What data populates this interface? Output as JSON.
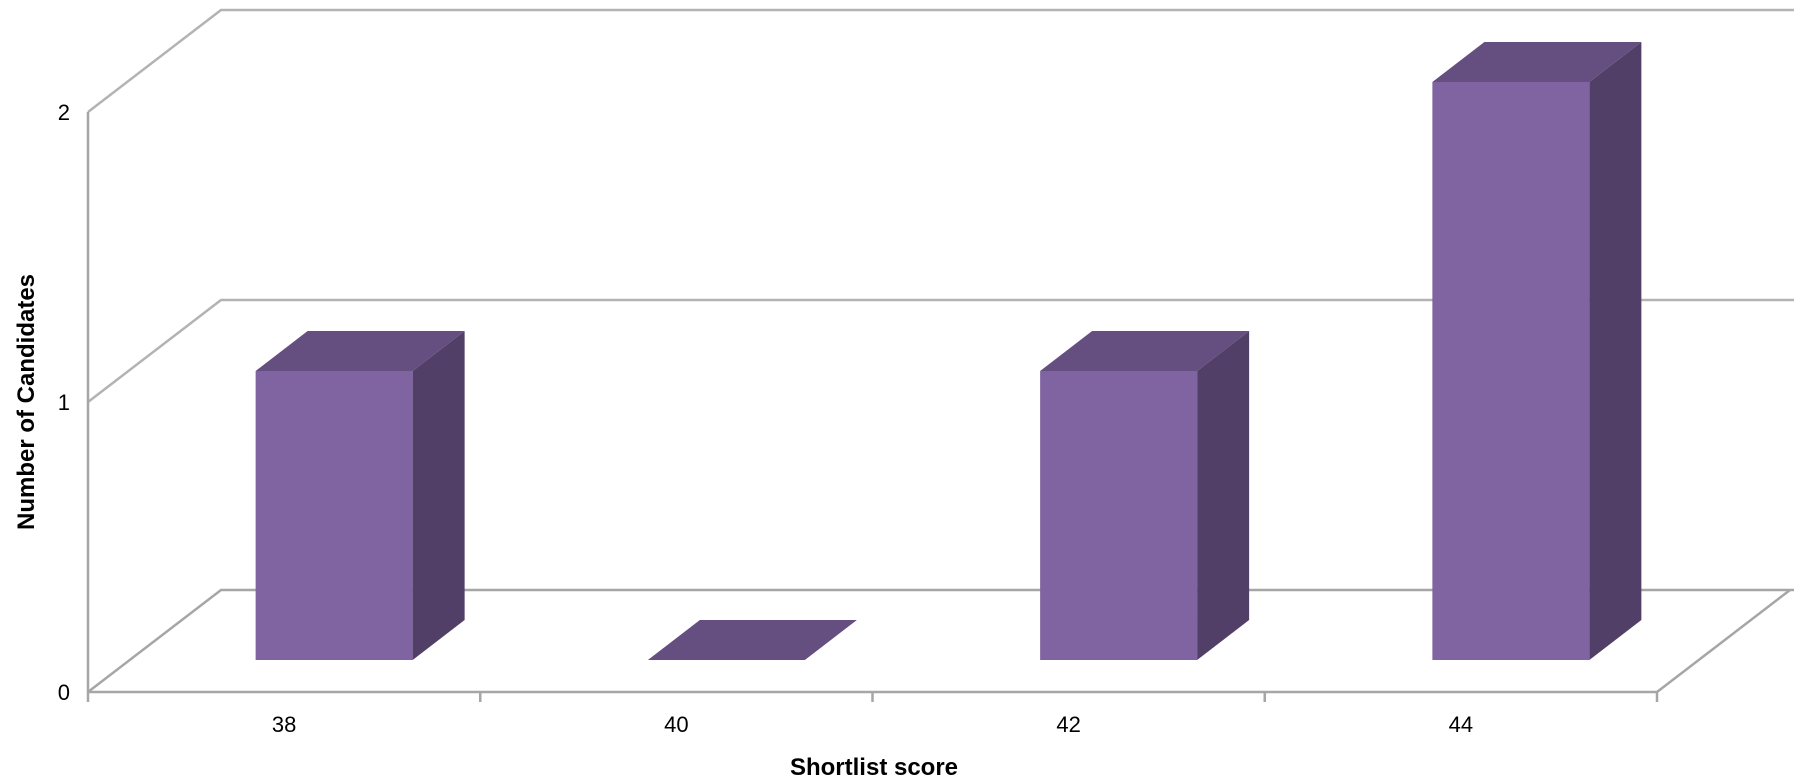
{
  "chart_data": {
    "type": "bar",
    "categories": [
      "38",
      "40",
      "42",
      "44"
    ],
    "values": [
      1,
      0,
      1,
      2
    ],
    "xlabel": "Shortlist score",
    "ylabel": "Number of Candidates",
    "ylim": [
      0,
      2
    ],
    "yticks": [
      "0",
      "1",
      "2"
    ],
    "grid": true,
    "legend": "none",
    "style": "3d-column"
  },
  "colors": {
    "bar_front": "#8064a2",
    "bar_top": "#654e80",
    "bar_side": "#523f67",
    "grid": "#b3b3b3"
  }
}
